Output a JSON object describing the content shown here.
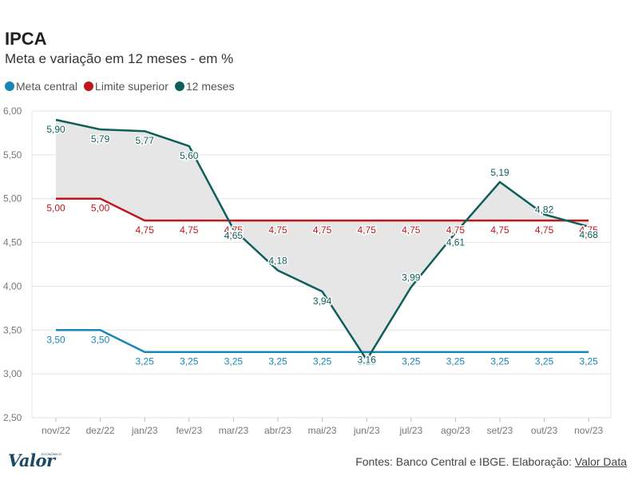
{
  "header": {
    "title": "IPCA",
    "subtitle": "Meta e variação em 12 meses - em %"
  },
  "footer": {
    "source_prefix": "Fontes: Banco Central e IBGE. Elaboração: ",
    "source_link": "Valor Data",
    "logo": "Valor",
    "logo_small": "ECONÔMICO"
  },
  "colors": {
    "meta": "#1a86b8",
    "limite": "#c0161c",
    "doze": "#0e5f5a",
    "area": "#e6e6e6",
    "grid": "#e4e4e4",
    "axis_text": "#777777"
  },
  "chart_data": {
    "type": "line",
    "title": "IPCA",
    "subtitle": "Meta e variação em 12 meses - em %",
    "xlabel": "",
    "ylabel": "",
    "ylim": [
      2.5,
      6.0
    ],
    "yticks": [
      2.5,
      3.0,
      3.5,
      4.0,
      4.5,
      5.0,
      5.5,
      6.0
    ],
    "ytick_labels": [
      "2,50",
      "3,00",
      "3,50",
      "4,00",
      "4,50",
      "5,00",
      "5,50",
      "6,00"
    ],
    "categories": [
      "nov/22",
      "dez/22",
      "jan/23",
      "fev/23",
      "mar/23",
      "abr/23",
      "mai/23",
      "jun/23",
      "jul/23",
      "ago/23",
      "set/23",
      "out/23",
      "nov/23"
    ],
    "series": [
      {
        "name": "Meta central",
        "color_key": "meta",
        "values": [
          3.5,
          3.5,
          3.25,
          3.25,
          3.25,
          3.25,
          3.25,
          3.25,
          3.25,
          3.25,
          3.25,
          3.25,
          3.25
        ],
        "labels": [
          "3,50",
          "3,50",
          "3,25",
          "3,25",
          "3,25",
          "3,25",
          "3,25",
          "3,25",
          "3,25",
          "3,25",
          "3,25",
          "3,25",
          "3,25"
        ]
      },
      {
        "name": "Limite superior",
        "color_key": "limite",
        "values": [
          5.0,
          5.0,
          4.75,
          4.75,
          4.75,
          4.75,
          4.75,
          4.75,
          4.75,
          4.75,
          4.75,
          4.75,
          4.75
        ],
        "labels": [
          "5,00",
          "5,00",
          "4,75",
          "4,75",
          "4,75",
          "4,75",
          "4,75",
          "4,75",
          "4,75",
          "4,75",
          "4,75",
          "4,75",
          "4,75"
        ]
      },
      {
        "name": "12 meses",
        "color_key": "doze",
        "values": [
          5.9,
          5.79,
          5.77,
          5.6,
          4.65,
          4.18,
          3.94,
          3.16,
          3.99,
          4.61,
          5.19,
          4.82,
          4.68
        ],
        "labels": [
          "5,90",
          "5,79",
          "5,77",
          "5,60",
          "4,65",
          "4,18",
          "3,94",
          "3,16",
          "3,99",
          "4,61",
          "5,19",
          "4,82",
          "4,68"
        ]
      }
    ],
    "legend": [
      "Meta central",
      "Limite superior",
      "12 meses"
    ],
    "legend_position": "top-left",
    "grid": true
  }
}
